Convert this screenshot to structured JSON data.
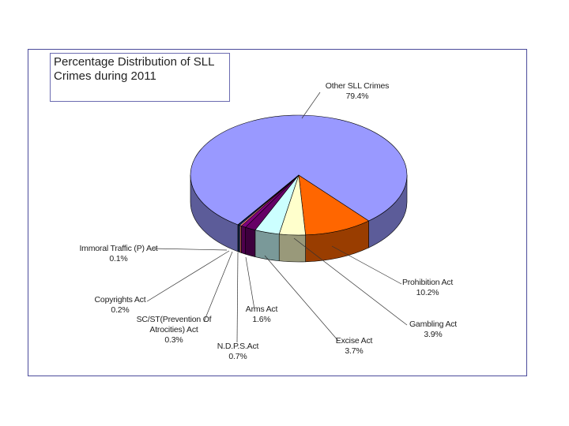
{
  "chart_data": {
    "type": "pie3d",
    "title": "Percentage Distribution of SLL Crimes during 2011",
    "categories": [
      "Other SLL Crimes",
      "Prohibition Act",
      "Gambling Act",
      "Excise Act",
      "Arms Act",
      "N.D.P.S.Act",
      "SC/ST(Prevention Of Atrocities) Act",
      "Copyrights Act",
      "Immoral Traffic (P) Act"
    ],
    "values": [
      79.4,
      10.2,
      3.9,
      3.7,
      1.6,
      0.7,
      0.3,
      0.2,
      0.1
    ],
    "value_labels": [
      "79.4%",
      "10.2%",
      "3.9%",
      "3.7%",
      "1.6%",
      "0.7%",
      "0.3%",
      "0.2%",
      "0.1%"
    ],
    "colors": [
      "#9999ff",
      "#ff6600",
      "#ffffcc",
      "#ccffff",
      "#660066",
      "#800080",
      "#ff8080",
      "#0066cc",
      "#ccccff"
    ]
  }
}
